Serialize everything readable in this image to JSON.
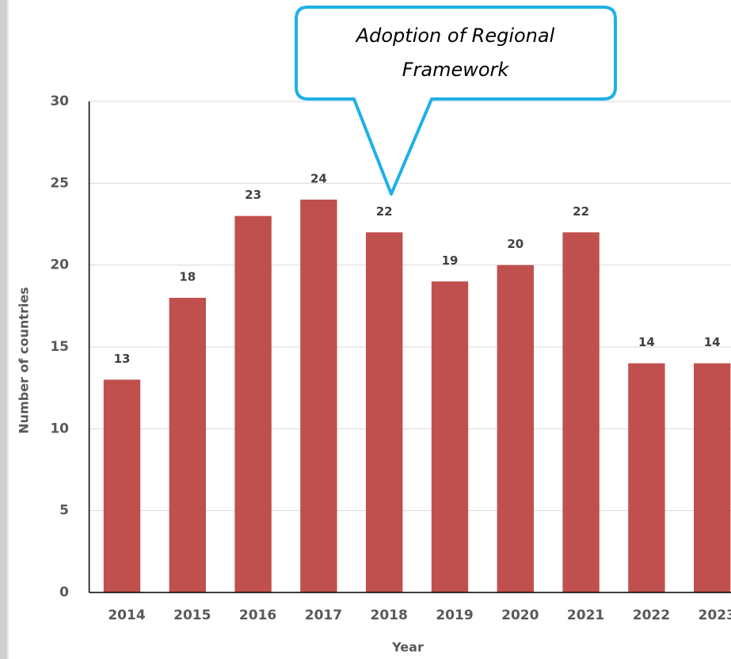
{
  "chart_data": {
    "type": "bar",
    "annotation": [
      "Adoption of Regional",
      "Framework"
    ],
    "x_label": "Year",
    "y_label": "Number of countries",
    "categories": [
      "2014",
      "2015",
      "2016",
      "2017",
      "2018",
      "2019",
      "2020",
      "2021",
      "2022",
      "2023"
    ],
    "values": [
      13,
      18,
      23,
      24,
      22,
      19,
      20,
      22,
      14,
      14
    ],
    "color": "#c0504d",
    "ylim": [
      0,
      30
    ],
    "yticks": [
      0,
      5,
      10,
      15,
      20,
      25,
      30
    ],
    "grid": true
  }
}
